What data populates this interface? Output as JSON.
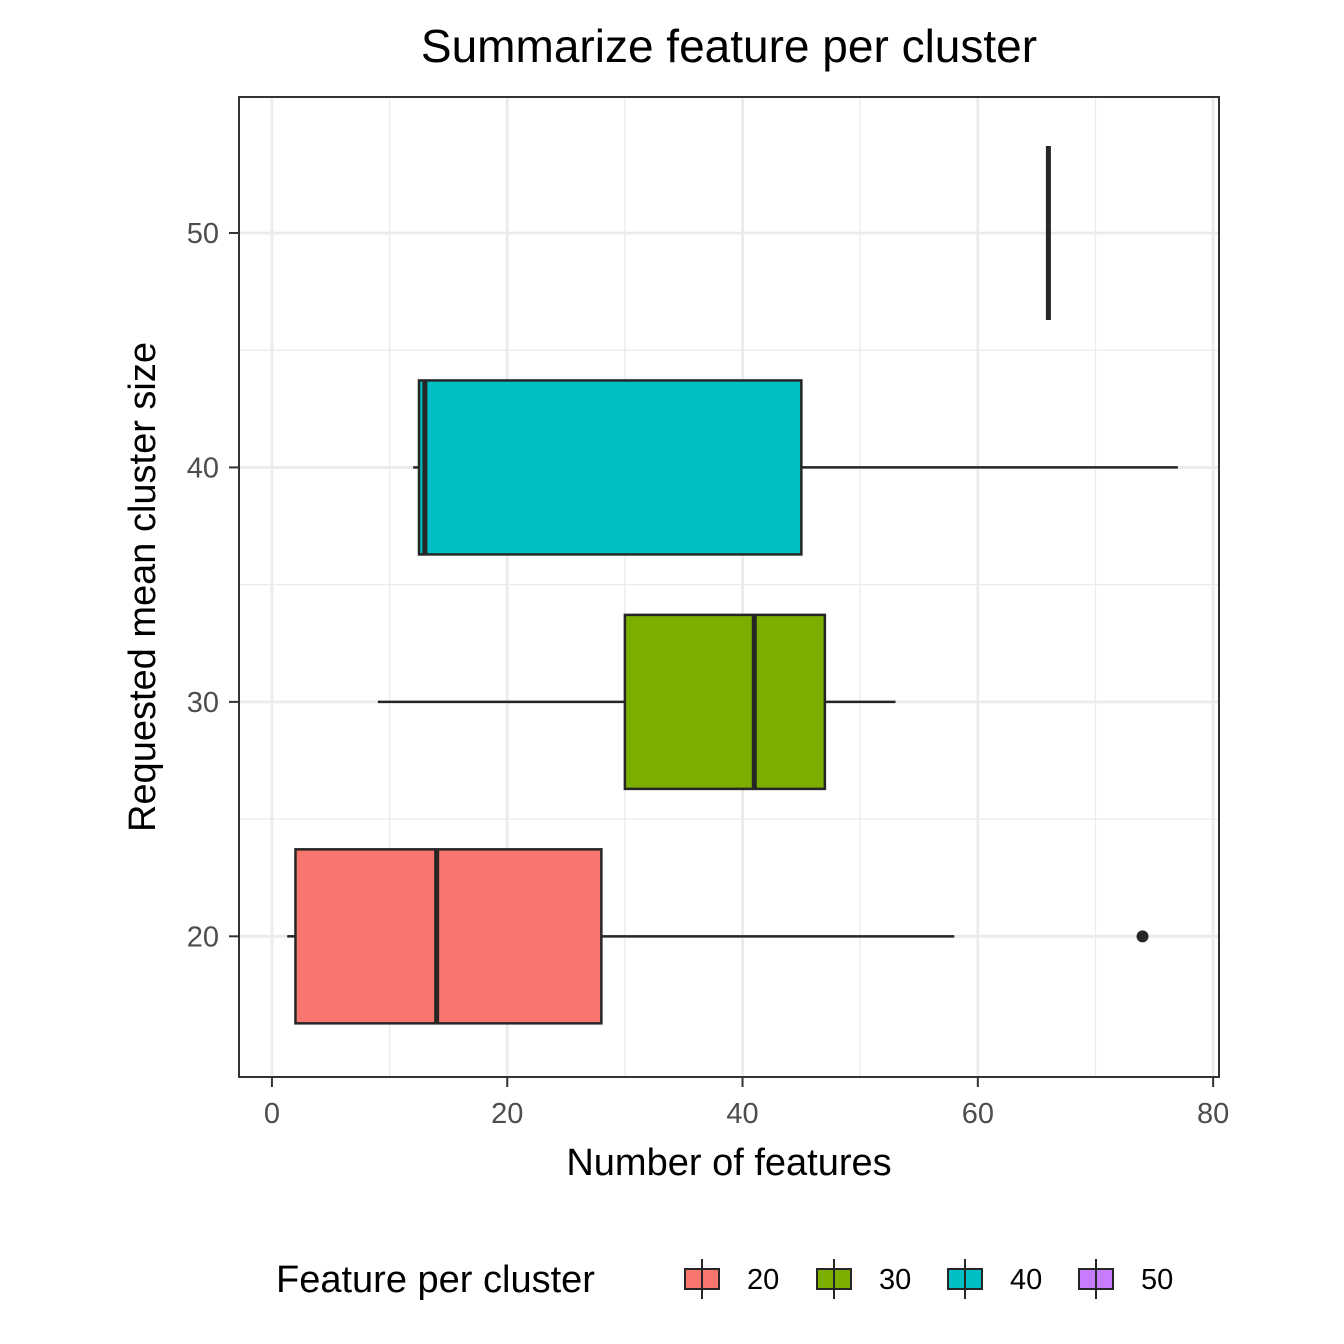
{
  "chart_data": {
    "type": "boxplot",
    "orientation": "horizontal",
    "title": "Summarize feature per cluster",
    "xlabel": "Number of features",
    "ylabel": "Requested mean cluster size",
    "xlim": [
      -2.8,
      80.5
    ],
    "ylim": [
      14.0,
      55.8
    ],
    "x_ticks": [
      0,
      20,
      40,
      60,
      80
    ],
    "y_ticks": [
      20,
      30,
      40,
      50
    ],
    "grid": true,
    "legend": {
      "title": "Feature per cluster",
      "position": "bottom"
    },
    "series": [
      {
        "name": "20",
        "y": 20,
        "color": "#F8766D",
        "whisker_low": 1.3,
        "q1": 2,
        "median": 14,
        "q3": 28,
        "whisker_high": 58,
        "outliers": [
          74
        ]
      },
      {
        "name": "30",
        "y": 30,
        "color": "#7CAE00",
        "whisker_low": 9,
        "q1": 30,
        "median": 41,
        "q3": 47,
        "whisker_high": 53,
        "outliers": []
      },
      {
        "name": "40",
        "y": 40,
        "color": "#00BFC4",
        "whisker_low": 12,
        "q1": 12.5,
        "median": 13,
        "q3": 45,
        "whisker_high": 77,
        "outliers": []
      },
      {
        "name": "50",
        "y": 50,
        "color": "#C77CFF",
        "whisker_low": 66,
        "q1": 66,
        "median": 66,
        "q3": 66,
        "whisker_high": 66,
        "outliers": []
      }
    ]
  }
}
